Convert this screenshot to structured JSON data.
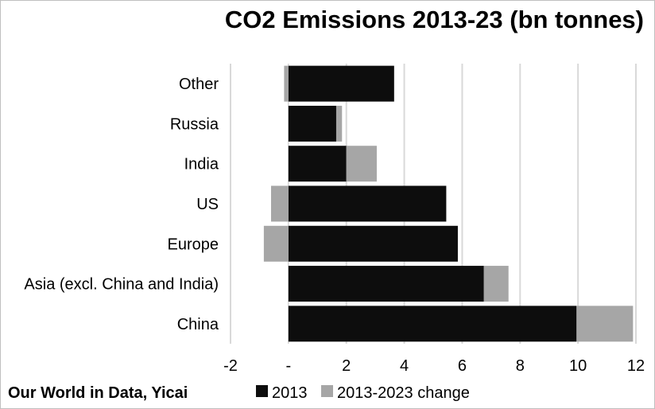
{
  "chart_data": {
    "type": "bar",
    "orientation": "horizontal",
    "stacked": true,
    "title": "CO2 Emissions 2013-23 (bn tonnes)",
    "categories": [
      "Other",
      "Russia",
      "India",
      "US",
      "Europe",
      "Asia (excl. China and India)",
      "China"
    ],
    "series": [
      {
        "name": "2013",
        "values": [
          3.65,
          1.65,
          2.0,
          5.45,
          5.85,
          6.75,
          9.95
        ],
        "color": "#0d0d0d"
      },
      {
        "name": "2013-2023 change",
        "values": [
          -0.15,
          0.2,
          1.05,
          -0.6,
          -0.85,
          0.85,
          1.95
        ],
        "color": "#a6a6a6"
      }
    ],
    "xlim": [
      -2,
      12
    ],
    "xticks": [
      -2,
      0,
      2,
      4,
      6,
      8,
      10,
      12
    ],
    "xtick_labels": [
      "-2",
      "-",
      "2",
      "4",
      "6",
      "8",
      "10",
      "12"
    ],
    "grid": "vertical",
    "legend": "bottom",
    "source": "Our World in Data, Yicai"
  }
}
